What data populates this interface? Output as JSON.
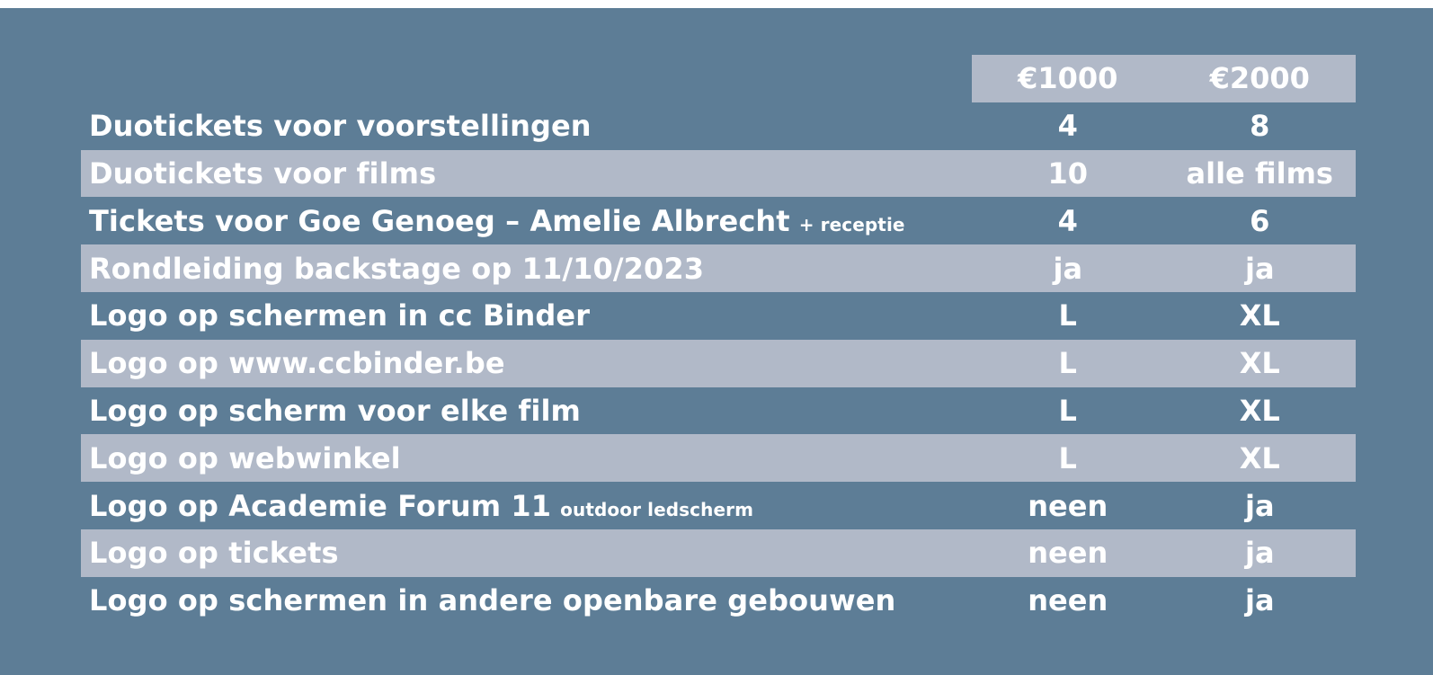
{
  "columns": [
    "€1000",
    "€2000"
  ],
  "rows": [
    {
      "label": "Duotickets voor voorstellingen",
      "note": "",
      "v1": "4",
      "v2": "8"
    },
    {
      "label": "Duotickets voor films",
      "note": "",
      "v1": "10",
      "v2": "alle films"
    },
    {
      "label": "Tickets voor Goe Genoeg – Amelie Albrecht",
      "note": "+ receptie",
      "v1": "4",
      "v2": "6"
    },
    {
      "label": "Rondleiding backstage op 11/10/2023",
      "note": "",
      "v1": "ja",
      "v2": "ja"
    },
    {
      "label": "Logo op schermen in cc Binder",
      "note": "",
      "v1": "L",
      "v2": "XL"
    },
    {
      "label": "Logo op www.ccbinder.be",
      "note": "",
      "v1": "L",
      "v2": "XL"
    },
    {
      "label": "Logo op scherm voor elke film",
      "note": "",
      "v1": "L",
      "v2": "XL"
    },
    {
      "label": "Logo op webwinkel",
      "note": "",
      "v1": "L",
      "v2": "XL"
    },
    {
      "label": "Logo op Academie Forum 11",
      "note": "outdoor ledscherm",
      "v1": "neen",
      "v2": "ja"
    },
    {
      "label": "Logo op tickets",
      "note": "",
      "v1": "neen",
      "v2": "ja"
    },
    {
      "label": "Logo op schermen in andere openbare gebouwen",
      "note": "",
      "v1": "neen",
      "v2": "ja"
    }
  ],
  "colors": {
    "background": "#5d7d96",
    "band": "#b1b9c8",
    "text": "#ffffff"
  }
}
